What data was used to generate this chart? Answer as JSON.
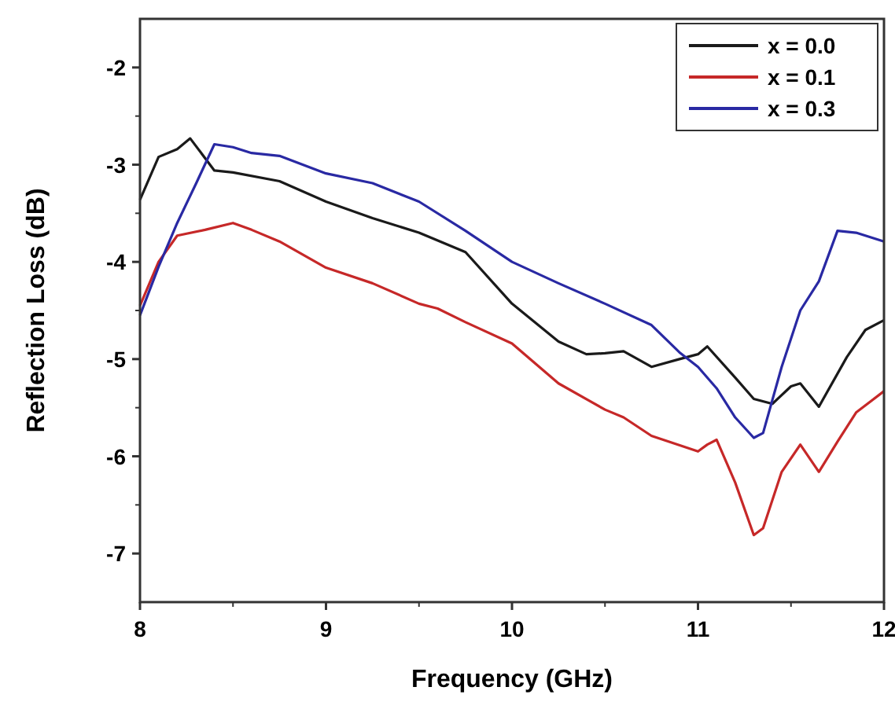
{
  "chart_data": {
    "type": "line",
    "xlabel": "Frequency (GHz)",
    "ylabel": "Reflection Loss (dB)",
    "xlim": [
      8,
      12
    ],
    "ylim": [
      -7.5,
      -1.5
    ],
    "xticks": [
      8,
      9,
      10,
      11,
      12
    ],
    "yticks": [
      -7,
      -6,
      -5,
      -4,
      -3,
      -2
    ],
    "grid": false,
    "legend": "top right",
    "marker": "none",
    "line_style": "solid",
    "series": [
      {
        "name": "x = 0.0",
        "color": "#1a1a1a",
        "x": [
          8.0,
          8.1,
          8.2,
          8.27,
          8.4,
          8.5,
          8.75,
          9.0,
          9.25,
          9.5,
          9.75,
          10.0,
          10.25,
          10.4,
          10.5,
          10.6,
          10.75,
          10.9,
          11.0,
          11.05,
          11.2,
          11.3,
          11.4,
          11.5,
          11.55,
          11.65,
          11.8,
          11.9,
          12.0
        ],
        "values": [
          -3.36,
          -2.92,
          -2.84,
          -2.73,
          -3.06,
          -3.08,
          -3.17,
          -3.38,
          -3.55,
          -3.7,
          -3.9,
          -4.43,
          -4.82,
          -4.95,
          -4.94,
          -4.92,
          -5.08,
          -5.0,
          -4.95,
          -4.87,
          -5.19,
          -5.41,
          -5.46,
          -5.28,
          -5.25,
          -5.49,
          -4.98,
          -4.7,
          -4.6
        ]
      },
      {
        "name": "x = 0.1",
        "color": "#c62828",
        "x": [
          8.0,
          8.1,
          8.2,
          8.35,
          8.5,
          8.6,
          8.75,
          9.0,
          9.25,
          9.5,
          9.6,
          9.75,
          10.0,
          10.25,
          10.5,
          10.6,
          10.75,
          11.0,
          11.05,
          11.1,
          11.2,
          11.3,
          11.35,
          11.45,
          11.55,
          11.65,
          11.75,
          11.85,
          12.0
        ],
        "values": [
          -4.45,
          -4.0,
          -3.73,
          -3.67,
          -3.6,
          -3.67,
          -3.79,
          -4.06,
          -4.22,
          -4.43,
          -4.48,
          -4.62,
          -4.84,
          -5.25,
          -5.52,
          -5.6,
          -5.79,
          -5.95,
          -5.88,
          -5.83,
          -6.27,
          -6.81,
          -6.74,
          -6.16,
          -5.88,
          -6.16,
          -5.85,
          -5.55,
          -5.33
        ]
      },
      {
        "name": "x = 0.3",
        "color": "#2929a3",
        "x": [
          8.0,
          8.1,
          8.2,
          8.3,
          8.4,
          8.5,
          8.6,
          8.75,
          9.0,
          9.25,
          9.5,
          9.75,
          10.0,
          10.25,
          10.5,
          10.75,
          10.9,
          11.0,
          11.1,
          11.2,
          11.3,
          11.35,
          11.45,
          11.55,
          11.65,
          11.75,
          11.85,
          12.0
        ],
        "values": [
          -4.55,
          -4.05,
          -3.6,
          -3.2,
          -2.79,
          -2.82,
          -2.88,
          -2.91,
          -3.09,
          -3.19,
          -3.38,
          -3.68,
          -4.0,
          -4.22,
          -4.43,
          -4.65,
          -4.93,
          -5.08,
          -5.3,
          -5.6,
          -5.81,
          -5.76,
          -5.08,
          -4.5,
          -4.2,
          -3.68,
          -3.7,
          -3.79
        ]
      }
    ]
  }
}
